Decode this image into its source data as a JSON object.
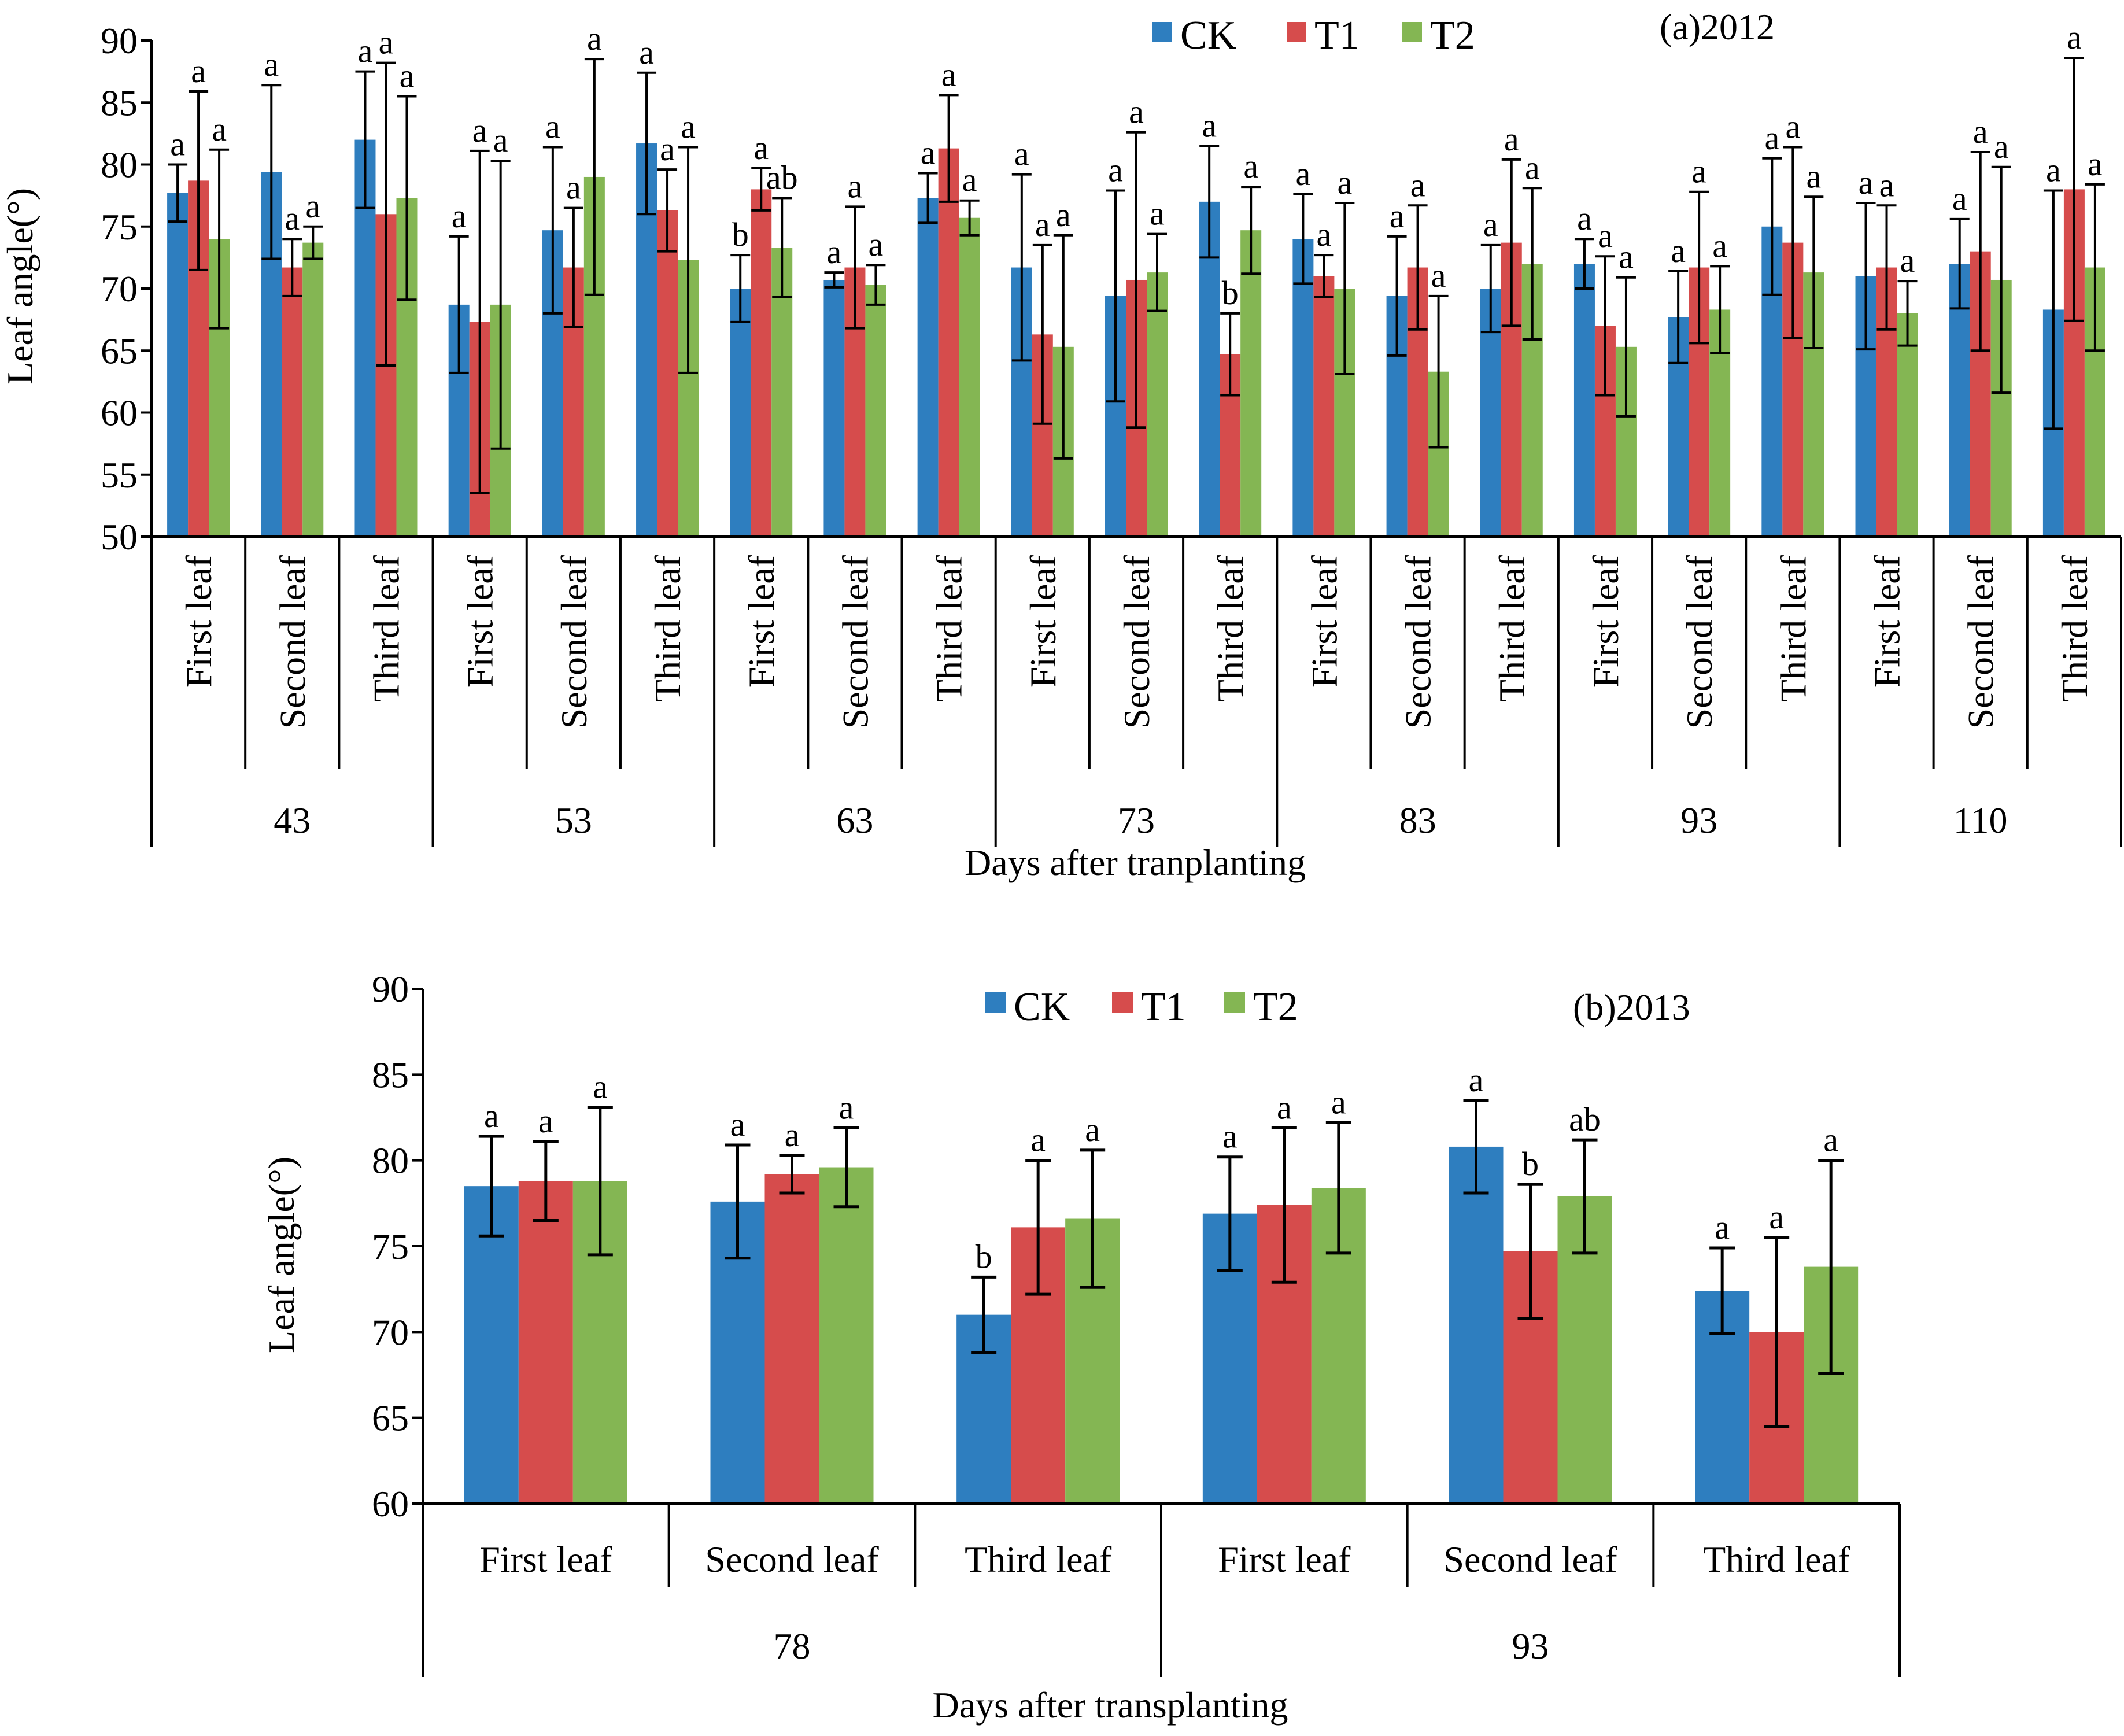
{
  "colors": {
    "CK": "#2E7EBF",
    "T1": "#D64C4C",
    "T2": "#84B653",
    "axis": "#000000"
  },
  "chart_data": [
    {
      "type": "bar",
      "panel_label": "(a)2012",
      "ylabel": "Leaf angle(°)",
      "xlabel": "Days after tranplanting",
      "ylim": [
        50,
        90
      ],
      "yticks": [
        "50",
        "55",
        "60",
        "65",
        "70",
        "75",
        "80",
        "85",
        "90"
      ],
      "legend": [
        "CK",
        "T1",
        "T2"
      ],
      "legend_position": "top-center",
      "groups": [
        "43",
        "53",
        "63",
        "73",
        "83",
        "93",
        "110"
      ],
      "categories": [
        "First leaf",
        "Second leaf",
        "Third leaf",
        "First leaf",
        "Second leaf",
        "Third leaf",
        "First leaf",
        "Second leaf",
        "Third leaf",
        "First leaf",
        "Second leaf",
        "Third leaf",
        "First leaf",
        "Second leaf",
        "Third leaf",
        "First leaf",
        "Second leaf",
        "Third leaf",
        "First leaf",
        "Second leaf",
        "Third leaf"
      ],
      "series": [
        {
          "name": "CK",
          "values": [
            77.7,
            79.4,
            82.0,
            68.7,
            74.7,
            81.7,
            70.0,
            70.7,
            77.3,
            71.7,
            69.4,
            77.0,
            74.0,
            69.4,
            70.0,
            72.0,
            67.7,
            75.0,
            71.0,
            72.0,
            68.3
          ],
          "errors": [
            2.3,
            7.0,
            5.5,
            5.5,
            6.7,
            5.7,
            2.7,
            0.6,
            2.0,
            7.5,
            8.5,
            4.5,
            3.6,
            4.8,
            3.5,
            2.0,
            3.7,
            5.5,
            5.9,
            3.6,
            9.6
          ],
          "labels": [
            "a",
            "a",
            "a",
            "a",
            "a",
            "a",
            "b",
            "a",
            "a",
            "a",
            "a",
            "a",
            "a",
            "a",
            "a",
            "a",
            "a",
            "a",
            "a",
            "a",
            "a"
          ]
        },
        {
          "name": "T1",
          "values": [
            78.7,
            71.7,
            76.0,
            67.3,
            71.7,
            76.3,
            78.0,
            71.7,
            81.3,
            66.3,
            70.7,
            64.7,
            71.0,
            71.7,
            73.7,
            67.0,
            71.7,
            73.7,
            71.7,
            73.0,
            78.0
          ],
          "errors": [
            7.2,
            2.3,
            12.2,
            13.8,
            4.8,
            3.3,
            1.7,
            4.9,
            4.3,
            7.2,
            11.9,
            3.3,
            1.7,
            5.0,
            6.7,
            5.6,
            6.1,
            7.7,
            5.0,
            8.0,
            10.6
          ],
          "labels": [
            "a",
            "a",
            "a",
            "a",
            "a",
            "a",
            "a",
            "a",
            "a",
            "a",
            "a",
            "b",
            "a",
            "a",
            "a",
            "a",
            "a",
            "a",
            "a",
            "a",
            "a"
          ]
        },
        {
          "name": "T2",
          "values": [
            74.0,
            73.7,
            77.3,
            68.7,
            79.0,
            72.3,
            73.3,
            70.3,
            75.7,
            65.3,
            71.3,
            74.7,
            70.0,
            63.3,
            72.0,
            65.3,
            68.3,
            71.3,
            68.0,
            70.7,
            71.7
          ],
          "errors": [
            7.2,
            1.3,
            8.2,
            11.6,
            9.5,
            9.1,
            4.0,
            1.6,
            1.4,
            9.0,
            3.1,
            3.5,
            6.9,
            6.1,
            6.1,
            5.6,
            3.5,
            6.1,
            2.6,
            9.1,
            6.7
          ],
          "labels": [
            "a",
            "a",
            "a",
            "a",
            "a",
            "a",
            "ab",
            "a",
            "a",
            "a",
            "a",
            "a",
            "a",
            "a",
            "a",
            "a",
            "a",
            "a",
            "a",
            "a",
            "a"
          ]
        }
      ]
    },
    {
      "type": "bar",
      "panel_label": "(b)2013",
      "ylabel": "Leaf angle(°)",
      "xlabel": "Days after transplanting",
      "ylim": [
        60,
        90
      ],
      "yticks": [
        "60",
        "65",
        "70",
        "75",
        "80",
        "85",
        "90"
      ],
      "legend": [
        "CK",
        "T1",
        "T2"
      ],
      "legend_position": "top-center",
      "groups": [
        "78",
        "93"
      ],
      "categories": [
        "First leaf",
        "Second leaf",
        "Third leaf",
        "First leaf",
        "Second leaf",
        "Third leaf"
      ],
      "series": [
        {
          "name": "CK",
          "values": [
            78.5,
            77.6,
            71.0,
            76.9,
            80.8,
            72.4
          ],
          "errors": [
            2.9,
            3.3,
            2.2,
            3.3,
            2.7,
            2.5
          ],
          "labels": [
            "a",
            "a",
            "b",
            "a",
            "a",
            "a"
          ]
        },
        {
          "name": "T1",
          "values": [
            78.8,
            79.2,
            76.1,
            77.4,
            74.7,
            70.0
          ],
          "errors": [
            2.3,
            1.1,
            3.9,
            4.5,
            3.9,
            5.5
          ],
          "labels": [
            "a",
            "a",
            "a",
            "a",
            "b",
            "a"
          ]
        },
        {
          "name": "T2",
          "values": [
            78.8,
            79.6,
            76.6,
            78.4,
            77.9,
            73.8
          ],
          "errors": [
            4.3,
            2.3,
            4.0,
            3.8,
            3.3,
            6.2
          ],
          "labels": [
            "a",
            "a",
            "a",
            "a",
            "ab",
            "a"
          ]
        }
      ]
    }
  ]
}
